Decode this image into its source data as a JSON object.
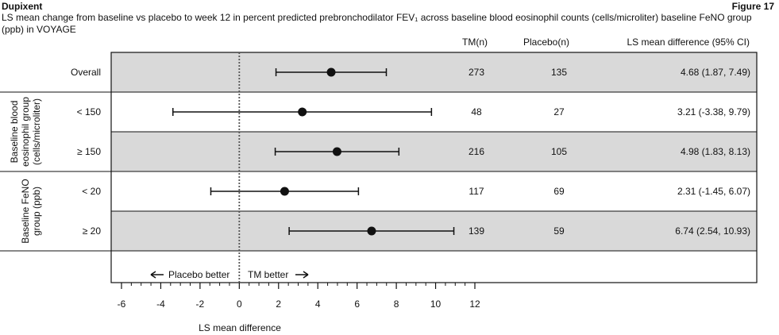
{
  "header": {
    "brand": "Dupixent",
    "figure_label": "Figure 17",
    "subtitle": "LS mean change from baseline vs placebo to week 12 in percent predicted prebronchodilator FEV₁ across baseline blood eosinophil counts (cells/microliter) baseline FeNO group (ppb) in VOYAGE"
  },
  "columns": {
    "tm": "TM(n)",
    "placebo": "Placebo(n)",
    "diff": "LS mean difference (95% CI)"
  },
  "groups": [
    {
      "label": "Baseline blood eosinophil group (cells/microliter)",
      "lines": [
        "Baseline blood",
        "eosinophil group",
        "(cells/microliter)"
      ]
    },
    {
      "label": "Baseline FeNO group (ppb)",
      "lines": [
        "Baseline FeNO",
        "group (ppb)"
      ]
    }
  ],
  "directions": {
    "left": "Placebo better",
    "right": "TM better"
  },
  "colors": {
    "shaded_row": "#d9d9d9",
    "marker": "#111111",
    "reference_line": "#555555"
  },
  "chart_data": {
    "type": "forest",
    "xlabel": "LS mean difference",
    "xlim": [
      -6,
      12
    ],
    "xticks": [
      -6,
      -4,
      -2,
      0,
      2,
      4,
      6,
      8,
      10,
      12
    ],
    "reference_value": 0,
    "rows": [
      {
        "label": "Overall",
        "group": null,
        "estimate": 4.68,
        "ci_low": 1.87,
        "ci_high": 7.49,
        "tm_n": 273,
        "placebo_n": 135,
        "diff_text": "4.68 (1.87, 7.49)",
        "shaded": true
      },
      {
        "label": "< 150",
        "group": 0,
        "estimate": 3.21,
        "ci_low": -3.38,
        "ci_high": 9.79,
        "tm_n": 48,
        "placebo_n": 27,
        "diff_text": "3.21 (-3.38, 9.79)",
        "shaded": false
      },
      {
        "label": "≥ 150",
        "group": 0,
        "estimate": 4.98,
        "ci_low": 1.83,
        "ci_high": 8.13,
        "tm_n": 216,
        "placebo_n": 105,
        "diff_text": "4.98 (1.83, 8.13)",
        "shaded": true
      },
      {
        "label": "< 20",
        "group": 1,
        "estimate": 2.31,
        "ci_low": -1.45,
        "ci_high": 6.07,
        "tm_n": 117,
        "placebo_n": 69,
        "diff_text": "2.31 (-1.45, 6.07)",
        "shaded": false
      },
      {
        "label": "≥ 20",
        "group": 1,
        "estimate": 6.74,
        "ci_low": 2.54,
        "ci_high": 10.93,
        "tm_n": 139,
        "placebo_n": 59,
        "diff_text": "6.74 (2.54, 10.93)",
        "shaded": true
      }
    ]
  }
}
